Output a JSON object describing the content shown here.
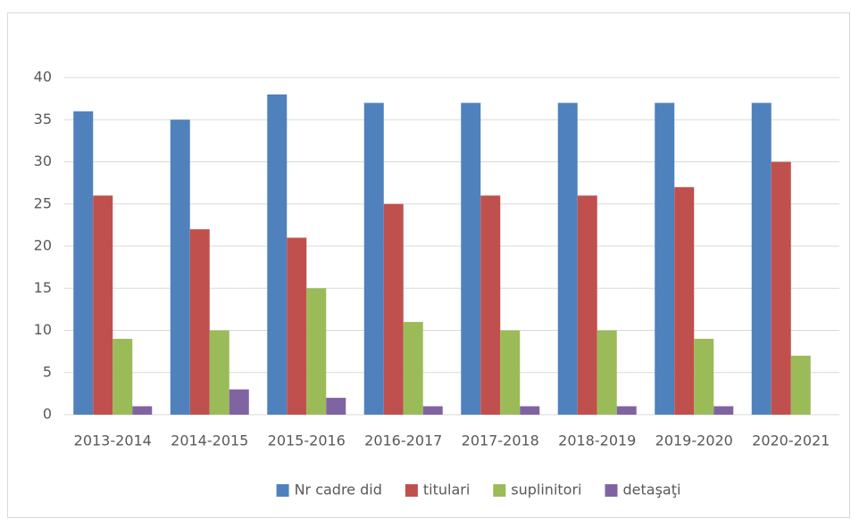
{
  "chart_data": {
    "type": "bar",
    "categories": [
      "2013-2014",
      "2014-2015",
      "2015-2016",
      "2016-2017",
      "2017-2018",
      "2018-2019",
      "2019-2020",
      "2020-2021"
    ],
    "series": [
      {
        "name": "Nr cadre did",
        "color": "#4f81bd",
        "values": [
          36,
          35,
          38,
          37,
          37,
          37,
          37,
          37
        ]
      },
      {
        "name": "titulari",
        "color": "#c0504d",
        "values": [
          26,
          22,
          21,
          25,
          26,
          26,
          27,
          30
        ]
      },
      {
        "name": "suplinitori",
        "color": "#9bbb59",
        "values": [
          9,
          10,
          15,
          11,
          10,
          10,
          9,
          7
        ]
      },
      {
        "name": "detaşaţi",
        "color": "#8064a2",
        "values": [
          1,
          3,
          2,
          1,
          1,
          1,
          1,
          0
        ]
      }
    ],
    "ylim": [
      0,
      40
    ],
    "yticks": [
      0,
      5,
      10,
      15,
      20,
      25,
      30,
      35,
      40
    ],
    "grid": true,
    "legend": "bottom"
  }
}
